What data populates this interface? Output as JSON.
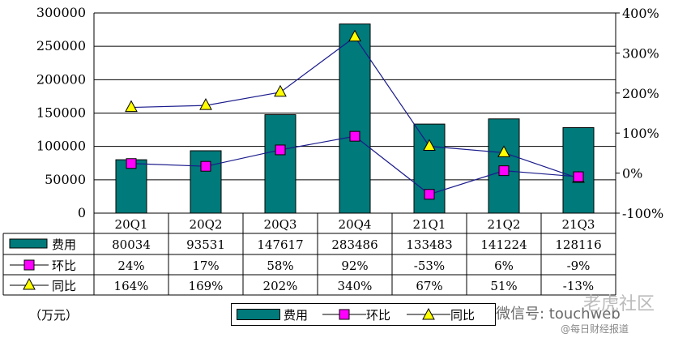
{
  "chart_data": {
    "type": "bar",
    "categories": [
      "20Q1",
      "20Q2",
      "20Q3",
      "20Q4",
      "21Q1",
      "21Q2",
      "21Q3"
    ],
    "series": [
      {
        "name": "费用",
        "kind": "bar",
        "axis": "left",
        "values": [
          80034,
          93531,
          147617,
          283486,
          133483,
          141224,
          128116
        ],
        "color": "#007a7a"
      },
      {
        "name": "环比",
        "kind": "line",
        "axis": "right",
        "values": [
          24,
          17,
          58,
          92,
          -53,
          6,
          -9
        ],
        "labels": [
          "24%",
          "17%",
          "58%",
          "92%",
          "-53%",
          "6%",
          "-9%"
        ],
        "color": "#ff00ff"
      },
      {
        "name": "同比",
        "kind": "line",
        "axis": "right",
        "values": [
          164,
          169,
          202,
          340,
          67,
          51,
          -13
        ],
        "labels": [
          "164%",
          "169%",
          "202%",
          "340%",
          "67%",
          "51%",
          "-13%"
        ],
        "color": "#ffff00"
      }
    ],
    "ylim": [
      0,
      300000
    ],
    "y_ticks": [
      "0",
      "50000",
      "100000",
      "150000",
      "200000",
      "250000",
      "300000"
    ],
    "y2lim": [
      -100,
      400
    ],
    "y2_ticks": [
      "-100%",
      "0%",
      "100%",
      "200%",
      "300%",
      "400%"
    ],
    "grid": true,
    "legend": "bottom",
    "data_table": true
  },
  "unit_label": "（万元）",
  "legend_labels": [
    "费用",
    "环比",
    "同比"
  ],
  "watermark": {
    "line1": "微信号: touchweb",
    "line2": "@每日财经报道",
    "line3": "老虎社区"
  }
}
